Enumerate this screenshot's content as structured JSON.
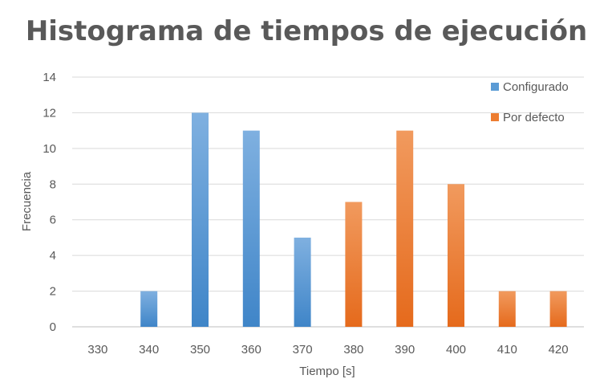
{
  "chart_data": {
    "type": "bar",
    "title": "Histograma de tiempos de ejecución",
    "xlabel": "Tiempo [s]",
    "ylabel": "Frecuencia",
    "categories": [
      "330",
      "340",
      "350",
      "360",
      "370",
      "380",
      "390",
      "400",
      "410",
      "420"
    ],
    "ylim": [
      0,
      14
    ],
    "yticks": [
      0,
      2,
      4,
      6,
      8,
      10,
      12,
      14
    ],
    "grid": true,
    "legend_position": "right",
    "series": [
      {
        "name": "Configurado",
        "color": "#5B9BD5",
        "values": [
          0,
          2,
          12,
          11,
          5,
          0,
          0,
          0,
          0,
          0
        ]
      },
      {
        "name": "Por defecto",
        "color": "#ED7D31",
        "values": [
          0,
          0,
          0,
          0,
          0,
          7,
          11,
          8,
          2,
          2
        ]
      }
    ]
  }
}
